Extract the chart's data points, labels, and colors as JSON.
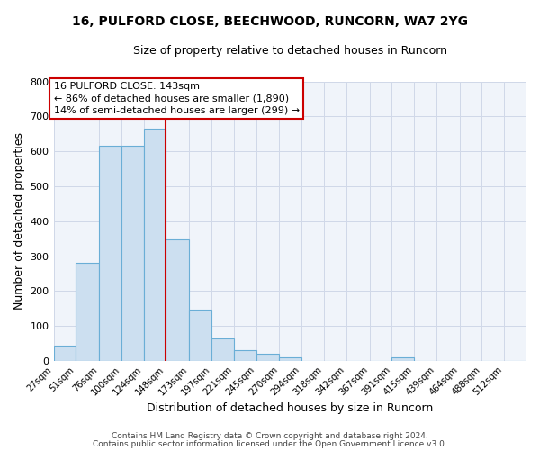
{
  "title_line1": "16, PULFORD CLOSE, BEECHWOOD, RUNCORN, WA7 2YG",
  "title_line2": "Size of property relative to detached houses in Runcorn",
  "xlabel": "Distribution of detached houses by size in Runcorn",
  "ylabel": "Number of detached properties",
  "bar_labels": [
    "27sqm",
    "51sqm",
    "76sqm",
    "100sqm",
    "124sqm",
    "148sqm",
    "173sqm",
    "197sqm",
    "221sqm",
    "245sqm",
    "270sqm",
    "294sqm",
    "318sqm",
    "342sqm",
    "367sqm",
    "391sqm",
    "415sqm",
    "439sqm",
    "464sqm",
    "488sqm",
    "512sqm"
  ],
  "bar_values": [
    45,
    280,
    615,
    615,
    665,
    348,
    148,
    65,
    32,
    20,
    10,
    0,
    0,
    0,
    0,
    10,
    0,
    0,
    0,
    0,
    0
  ],
  "bar_color": "#ccdff0",
  "bar_edgecolor": "#6aaed6",
  "grid_color": "#d0d8e8",
  "background_color": "#ffffff",
  "ax_background": "#f0f4fa",
  "redline_x": 148,
  "annotation_text": "16 PULFORD CLOSE: 143sqm\n← 86% of detached houses are smaller (1,890)\n14% of semi-detached houses are larger (299) →",
  "annotation_box_facecolor": "white",
  "annotation_box_edgecolor": "#cc0000",
  "redline_color": "#cc0000",
  "footer_line1": "Contains HM Land Registry data © Crown copyright and database right 2024.",
  "footer_line2": "Contains public sector information licensed under the Open Government Licence v3.0.",
  "ylim": [
    0,
    800
  ],
  "yticks": [
    0,
    100,
    200,
    300,
    400,
    500,
    600,
    700,
    800
  ],
  "bin_starts": [
    27,
    51,
    76,
    100,
    124,
    148,
    173,
    197,
    221,
    245,
    270,
    294,
    318,
    342,
    367,
    391,
    415,
    439,
    464,
    488,
    512
  ]
}
